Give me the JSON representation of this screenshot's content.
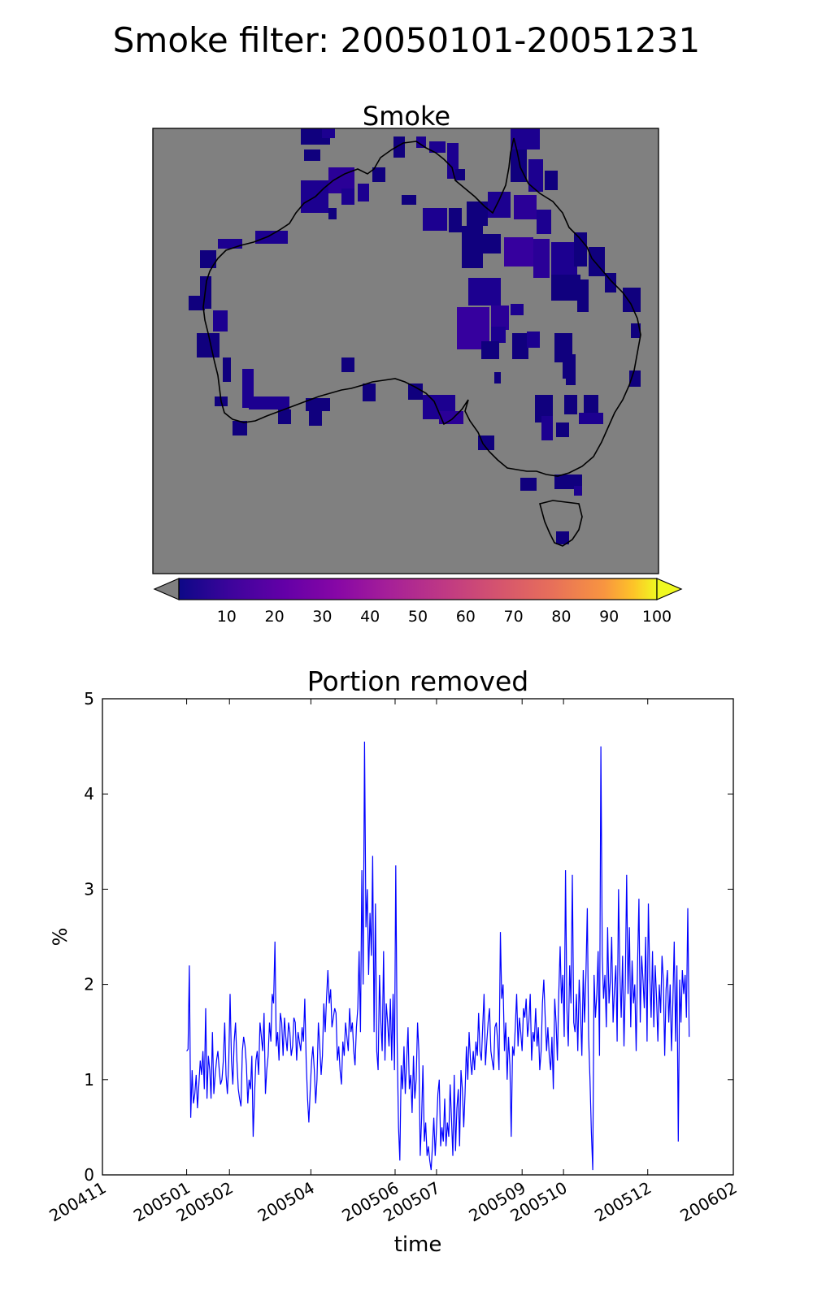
{
  "figure_title": "Smoke filter: 20050101-20051231",
  "colors": {
    "map_background": "#808080",
    "pixel_palette": [
      "#10007e",
      "#1c0090",
      "#2a0097",
      "#36009e",
      "#4a00a2"
    ],
    "colorbar_under": "#808080",
    "line": "#0000ff"
  },
  "chart_data": [
    {
      "type": "heatmap",
      "title": "Smoke",
      "colormap": "plasma",
      "colorbar": {
        "range": [
          0,
          100
        ],
        "ticks": [
          10,
          20,
          30,
          40,
          50,
          60,
          70,
          80,
          90,
          100
        ],
        "extend": "both"
      },
      "value_range_observed": [
        1,
        30
      ]
    },
    {
      "type": "line",
      "title": "Portion removed",
      "xlabel": "time",
      "ylabel": "%",
      "ylim": [
        0,
        5
      ],
      "yticks": [
        0,
        1,
        2,
        3,
        4,
        5
      ],
      "xlim": [
        "2004-11-01",
        "2006-02-01"
      ],
      "xticks": [
        "200411",
        "200501",
        "200502",
        "200504",
        "200506",
        "200507",
        "200509",
        "200510",
        "200512",
        "200602"
      ],
      "series": [
        {
          "x_start": "2005-01-01",
          "x_end": "2005-12-31",
          "values": [
            1.3,
            1.32,
            2.2,
            0.6,
            1.1,
            0.75,
            0.85,
            1.05,
            0.7,
            0.95,
            1.2,
            1.05,
            1.3,
            0.9,
            1.75,
            0.8,
            1.25,
            1.1,
            0.8,
            1.5,
            0.85,
            1.05,
            1.2,
            1.3,
            1.1,
            0.95,
            1.0,
            1.2,
            1.6,
            1.05,
            0.85,
            1.2,
            1.9,
            1.2,
            0.95,
            1.4,
            1.6,
            1.2,
            0.9,
            0.8,
            0.72,
            1.3,
            1.45,
            1.35,
            1.15,
            0.75,
            1.0,
            0.9,
            1.25,
            0.4,
            0.85,
            1.2,
            1.3,
            1.05,
            1.6,
            1.45,
            1.3,
            1.7,
            0.85,
            1.1,
            1.25,
            1.6,
            1.4,
            1.9,
            1.8,
            2.45,
            1.35,
            1.5,
            1.2,
            1.7,
            1.6,
            1.25,
            1.65,
            1.45,
            1.3,
            1.6,
            1.5,
            1.25,
            1.35,
            1.65,
            1.6,
            1.2,
            1.5,
            1.4,
            1.3,
            1.55,
            1.4,
            1.85,
            1.2,
            0.8,
            0.55,
            0.9,
            1.2,
            1.35,
            1.1,
            0.75,
            1.0,
            1.6,
            1.35,
            1.05,
            1.25,
            1.8,
            1.5,
            1.85,
            2.15,
            1.8,
            1.95,
            1.55,
            1.65,
            1.75,
            1.7,
            1.2,
            1.35,
            1.1,
            0.95,
            1.4,
            1.25,
            1.6,
            1.45,
            1.3,
            1.75,
            1.5,
            1.6,
            1.3,
            1.15,
            1.55,
            1.75,
            2.35,
            1.5,
            3.2,
            2.0,
            4.55,
            2.6,
            3.0,
            2.1,
            2.75,
            2.3,
            3.35,
            1.5,
            2.85,
            1.3,
            1.1,
            2.1,
            1.6,
            1.3,
            2.35,
            1.2,
            1.8,
            1.6,
            1.35,
            1.85,
            1.2,
            1.9,
            1.1,
            3.25,
            1.4,
            0.5,
            0.15,
            1.15,
            0.9,
            1.35,
            0.85,
            1.2,
            1.55,
            0.9,
            1.05,
            0.65,
            1.25,
            0.8,
            1.0,
            1.6,
            1.3,
            0.2,
            0.6,
            1.15,
            0.35,
            0.55,
            0.2,
            0.3,
            0.15,
            0.05,
            0.3,
            0.6,
            0.2,
            0.5,
            0.85,
            1.0,
            0.3,
            0.5,
            0.35,
            0.8,
            0.3,
            0.55,
            0.4,
            0.95,
            0.6,
            0.2,
            1.05,
            0.25,
            0.7,
            0.9,
            0.3,
            1.1,
            0.9,
            0.5,
            0.85,
            1.35,
            1.0,
            1.5,
            1.2,
            1.05,
            1.3,
            1.1,
            1.4,
            1.25,
            1.7,
            1.3,
            1.2,
            1.55,
            1.9,
            1.15,
            1.4,
            1.6,
            1.75,
            1.3,
            1.2,
            1.1,
            1.55,
            1.6,
            1.4,
            1.1,
            2.55,
            1.85,
            2.0,
            1.3,
            1.6,
            1.0,
            1.45,
            1.15,
            0.4,
            1.35,
            1.25,
            1.55,
            1.9,
            1.35,
            1.65,
            1.5,
            1.3,
            1.75,
            1.65,
            1.85,
            1.45,
            1.6,
            1.9,
            1.2,
            1.5,
            1.4,
            1.75,
            1.35,
            1.55,
            1.1,
            1.3,
            1.8,
            2.05,
            1.65,
            1.3,
            1.55,
            1.25,
            1.1,
            1.45,
            0.9,
            1.85,
            1.6,
            1.2,
            1.9,
            2.4,
            1.8,
            2.1,
            1.45,
            3.2,
            1.75,
            1.35,
            2.2,
            1.8,
            3.15,
            1.6,
            1.5,
            1.9,
            1.3,
            2.05,
            1.7,
            1.25,
            2.15,
            1.6,
            2.1,
            2.8,
            1.45,
            1.0,
            0.45,
            0.05,
            2.1,
            1.65,
            1.9,
            2.35,
            1.25,
            4.5,
            2.3,
            1.85,
            2.1,
            1.55,
            2.6,
            1.8,
            2.05,
            2.5,
            1.6,
            1.95,
            2.2,
            1.4,
            3.0,
            2.1,
            1.65,
            2.3,
            1.35,
            2.0,
            3.15,
            1.9,
            2.6,
            1.55,
            2.25,
            1.8,
            2.0,
            1.3,
            2.2,
            2.9,
            1.6,
            2.3,
            2.05,
            1.75,
            2.5,
            1.4,
            2.85,
            2.1,
            1.65,
            2.35,
            1.55,
            2.2,
            1.85,
            1.4,
            2.0,
            1.7,
            2.3,
            2.05,
            1.25,
            1.95,
            2.15,
            1.6,
            2.0,
            1.3,
            1.8,
            2.45,
            1.4,
            2.2,
            0.35,
            2.05,
            1.6,
            2.15,
            1.9,
            2.1,
            1.65,
            2.8,
            1.45
          ]
        }
      ]
    }
  ]
}
